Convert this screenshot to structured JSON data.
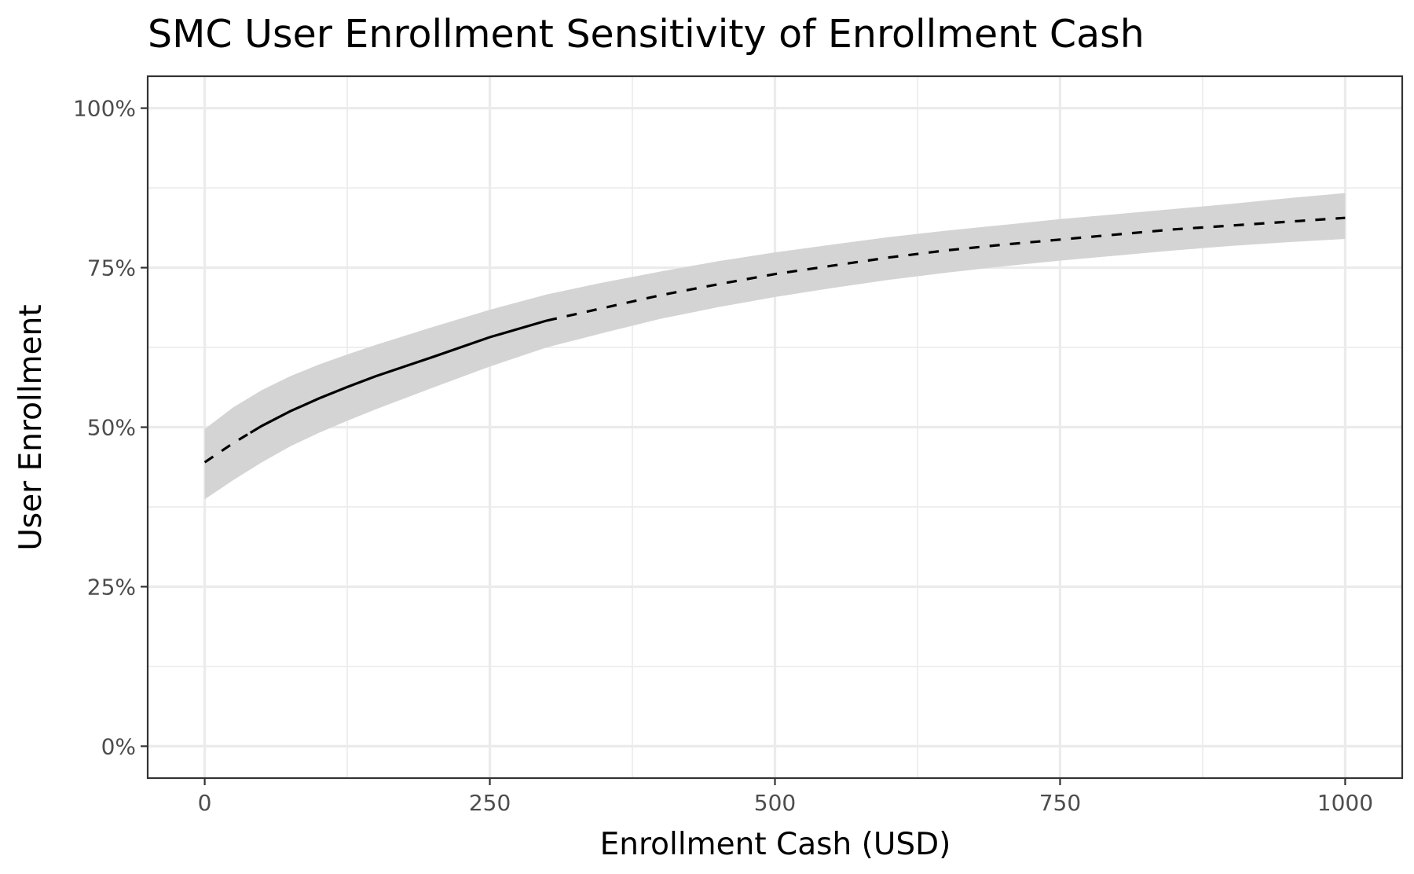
{
  "chart_data": {
    "type": "line",
    "title": "SMC User Enrollment Sensitivity of Enrollment Cash",
    "xlabel": "Enrollment Cash (USD)",
    "ylabel": "User Enrollment",
    "xlim": [
      -50,
      1050
    ],
    "ylim": [
      -0.05,
      1.05
    ],
    "x_ticks": [
      0,
      250,
      500,
      750,
      1000
    ],
    "x_tick_labels": [
      "0",
      "250",
      "500",
      "750",
      "1000"
    ],
    "y_ticks": [
      0,
      0.25,
      0.5,
      0.75,
      1.0
    ],
    "y_tick_labels": [
      "0%",
      "25%",
      "50%",
      "75%",
      "100%"
    ],
    "x_minor_ticks": [
      125,
      375,
      625,
      875
    ],
    "y_minor_ticks": [
      0.125,
      0.375,
      0.625,
      0.875
    ],
    "grid": true,
    "line_color": "#000000",
    "ribbon_color": "#d4d4d4",
    "observed_range": [
      40,
      300
    ],
    "series": [
      {
        "x": [
          0,
          25,
          50,
          75,
          100,
          125,
          150,
          175,
          200,
          250,
          300,
          350,
          400,
          450,
          500,
          550,
          600,
          650,
          700,
          750,
          800,
          850,
          900,
          950,
          1000
        ],
        "y": [
          0.445,
          0.475,
          0.502,
          0.525,
          0.545,
          0.563,
          0.58,
          0.595,
          0.61,
          0.641,
          0.667,
          0.687,
          0.707,
          0.724,
          0.74,
          0.753,
          0.766,
          0.777,
          0.786,
          0.794,
          0.802,
          0.81,
          0.816,
          0.822,
          0.828
        ],
        "ymin": [
          0.387,
          0.417,
          0.445,
          0.47,
          0.491,
          0.51,
          0.528,
          0.545,
          0.562,
          0.595,
          0.625,
          0.648,
          0.67,
          0.688,
          0.704,
          0.718,
          0.731,
          0.742,
          0.752,
          0.761,
          0.769,
          0.777,
          0.784,
          0.79,
          0.795
        ],
        "ymax": [
          0.497,
          0.531,
          0.558,
          0.58,
          0.598,
          0.614,
          0.629,
          0.643,
          0.657,
          0.684,
          0.708,
          0.727,
          0.744,
          0.76,
          0.774,
          0.786,
          0.798,
          0.808,
          0.817,
          0.826,
          0.834,
          0.842,
          0.85,
          0.859,
          0.867
        ]
      }
    ]
  }
}
